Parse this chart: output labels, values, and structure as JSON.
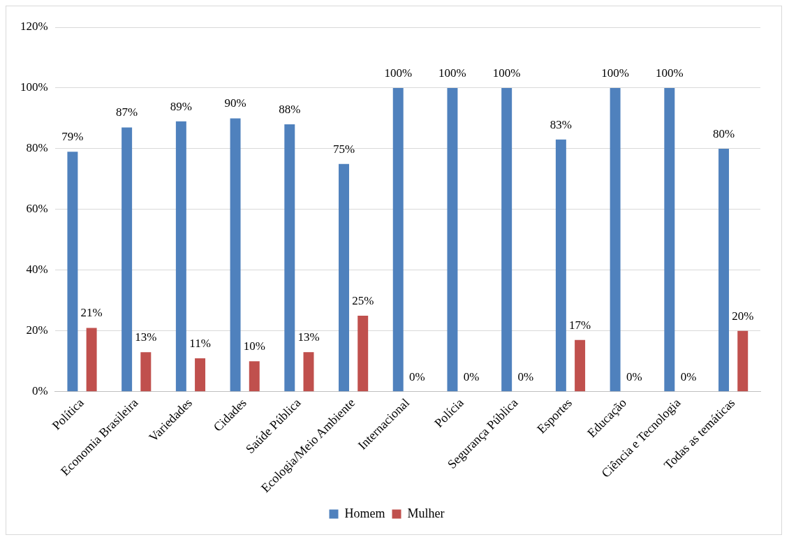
{
  "chart_data": {
    "type": "bar",
    "categories": [
      "Política",
      "Economia Brasileira",
      "Variedades",
      "Cidades",
      "Saúde Pública",
      "Ecologia/Meio Ambiente",
      "Internacional",
      "Polícia",
      "Segurança Pública",
      "Esportes",
      "Educação",
      "Ciência e Tecnologia",
      "Todas as temáticas"
    ],
    "series": [
      {
        "name": "Homem",
        "color": "#4f81bd",
        "values": [
          79,
          87,
          89,
          90,
          88,
          75,
          100,
          100,
          100,
          83,
          100,
          100,
          80
        ],
        "value_labels": [
          "79%",
          "87%",
          "89%",
          "90%",
          "88%",
          "75%",
          "100%",
          "100%",
          "100%",
          "83%",
          "100%",
          "100%",
          "80%"
        ]
      },
      {
        "name": "Mulher",
        "color": "#c0504d",
        "values": [
          21,
          13,
          11,
          10,
          13,
          25,
          0,
          0,
          0,
          17,
          0,
          0,
          20
        ],
        "value_labels": [
          "21%",
          "13%",
          "11%",
          "10%",
          "13%",
          "25%",
          "0%",
          "0%",
          "0%",
          "17%",
          "0%",
          "0%",
          "20%"
        ]
      }
    ],
    "ylim": [
      0,
      120
    ],
    "yticks": [
      {
        "value": 0,
        "label": "0%"
      },
      {
        "value": 20,
        "label": "20%"
      },
      {
        "value": 40,
        "label": "40%"
      },
      {
        "value": 60,
        "label": "60%"
      },
      {
        "value": 80,
        "label": "80%"
      },
      {
        "value": 100,
        "label": "100%"
      },
      {
        "value": 120,
        "label": "120%"
      }
    ],
    "grid": "y",
    "legend": "bottom"
  }
}
